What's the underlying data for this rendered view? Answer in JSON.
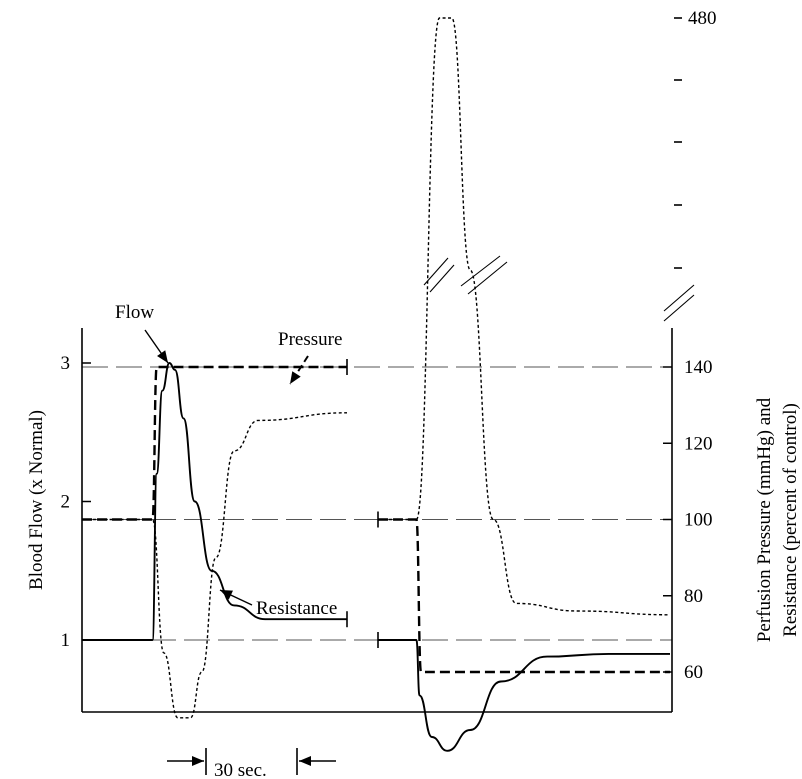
{
  "chart_data": {
    "type": "line",
    "title": "",
    "left_axis": {
      "label": "Blood Flow (x Normal)",
      "range": [
        0.15,
        3.3
      ],
      "ticks": [
        1,
        2,
        3
      ],
      "tick_labels": [
        "1",
        "2",
        "3"
      ]
    },
    "right_axis": {
      "label_line1": "Perfusion Pressure (mmHg)  and",
      "label_line2": "Resistance (percent of control)",
      "ticks": [
        60,
        80,
        100,
        120,
        140
      ],
      "tick_labels": [
        "60",
        "80",
        "100",
        "120",
        "140"
      ],
      "upper_ticks": [
        480
      ],
      "upper_tick_labels": [
        "480"
      ],
      "scale_break": true
    },
    "reference_lines": [
      {
        "axis": "right",
        "value": 140
      },
      {
        "axis": "right",
        "value": 100
      },
      {
        "axis": "left",
        "value": 1
      }
    ],
    "time_scale_label": "30 sec.",
    "panels": [
      {
        "name": "pressure-increase",
        "series": [
          {
            "name": "Flow",
            "axis": "left",
            "style": "solid",
            "points": [
              [
                0,
                1.0
              ],
              [
                50,
                1.0
              ],
              [
                53,
                2.2
              ],
              [
                57,
                2.8
              ],
              [
                62,
                3.0
              ],
              [
                66,
                2.95
              ],
              [
                72,
                2.6
              ],
              [
                80,
                2.0
              ],
              [
                92,
                1.5
              ],
              [
                108,
                1.25
              ],
              [
                130,
                1.15
              ],
              [
                188,
                1.15
              ]
            ]
          },
          {
            "name": "Pressure",
            "axis": "right",
            "style": "dashed",
            "points": [
              [
                0,
                100
              ],
              [
                50,
                100
              ],
              [
                53,
                140
              ],
              [
                188,
                140
              ]
            ]
          },
          {
            "name": "Resistance",
            "axis": "right",
            "style": "dotted",
            "points": [
              [
                0,
                100
              ],
              [
                50,
                100
              ],
              [
                58,
                65
              ],
              [
                68,
                48
              ],
              [
                77,
                48
              ],
              [
                85,
                60
              ],
              [
                95,
                90
              ],
              [
                108,
                118
              ],
              [
                125,
                126
              ],
              [
                188,
                128
              ]
            ]
          }
        ]
      },
      {
        "name": "pressure-decrease",
        "series": [
          {
            "name": "Flow",
            "axis": "left",
            "style": "solid",
            "points": [
              [
                0,
                1.0
              ],
              [
                25,
                1.0
              ],
              [
                27,
                0.6
              ],
              [
                35,
                0.3
              ],
              [
                45,
                0.2
              ],
              [
                60,
                0.35
              ],
              [
                80,
                0.7
              ],
              [
                110,
                0.88
              ],
              [
                150,
                0.9
              ],
              [
                190,
                0.9
              ]
            ]
          },
          {
            "name": "Pressure",
            "axis": "right",
            "style": "dashed",
            "points": [
              [
                0,
                100
              ],
              [
                25,
                100
              ],
              [
                28,
                60
              ],
              [
                40,
                60
              ],
              [
                190,
                60
              ]
            ]
          },
          {
            "name": "Resistance",
            "axis": "right",
            "style": "dotted",
            "points": [
              [
                0,
                100
              ],
              [
                25,
                100
              ],
              [
                40,
                480
              ],
              [
                48,
                480
              ],
              [
                60,
                300
              ],
              [
                75,
                100
              ],
              [
                90,
                78
              ],
              [
                130,
                76
              ],
              [
                190,
                75
              ]
            ]
          }
        ]
      }
    ],
    "annotations": [
      {
        "text": "Flow",
        "target": "flow-peak"
      },
      {
        "text": "Pressure",
        "target": "pressure-plateau"
      },
      {
        "text": "Resistance",
        "target": "resistance-trough"
      }
    ]
  }
}
